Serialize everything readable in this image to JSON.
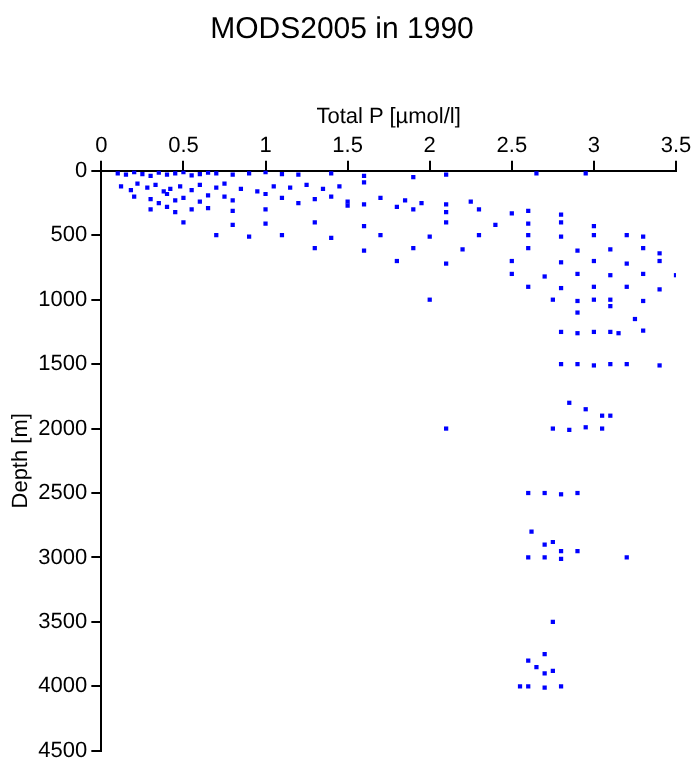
{
  "chart_data": {
    "type": "scatter",
    "title": "MODS2005 in 1990",
    "xlabel": "Total P [µmol/l]",
    "ylabel": "Depth [m]",
    "xlim": [
      0,
      3.5
    ],
    "xticks": [
      0,
      0.5,
      1,
      1.5,
      2,
      2.5,
      3,
      3.5
    ],
    "ylim": [
      4500,
      0
    ],
    "yticks": [
      0,
      500,
      1000,
      1500,
      2000,
      2500,
      3000,
      3500,
      4000,
      4500
    ],
    "grid": false,
    "legend": false,
    "marker": "square",
    "series": [
      {
        "color": "#0000ff",
        "x": [
          0.1,
          0.15,
          0.2,
          0.25,
          0.3,
          0.35,
          0.4,
          0.45,
          0.5,
          0.55,
          0.6,
          0.65,
          0.7,
          0.8,
          0.9,
          1.0,
          1.1,
          1.2,
          1.4,
          1.6,
          1.9,
          2.1,
          2.65,
          2.95,
          0.12,
          0.18,
          0.22,
          0.28,
          0.33,
          0.38,
          0.42,
          0.48,
          0.55,
          0.6,
          0.7,
          0.75,
          0.85,
          0.95,
          1.05,
          1.15,
          1.25,
          1.35,
          1.45,
          1.6,
          0.2,
          0.3,
          0.35,
          0.4,
          0.45,
          0.5,
          0.6,
          0.65,
          0.75,
          0.8,
          1.0,
          1.1,
          1.2,
          1.3,
          1.4,
          1.5,
          1.6,
          1.7,
          1.85,
          1.95,
          2.1,
          2.25,
          0.3,
          0.4,
          0.45,
          0.55,
          0.65,
          0.8,
          1.0,
          1.5,
          1.8,
          1.9,
          2.1,
          2.3,
          2.5,
          2.6,
          2.8,
          0.5,
          0.8,
          1.0,
          1.3,
          1.6,
          2.1,
          2.4,
          2.6,
          2.8,
          3.0,
          0.7,
          0.9,
          1.1,
          1.4,
          1.7,
          2.0,
          2.3,
          2.6,
          2.8,
          3.0,
          3.2,
          3.3,
          1.3,
          1.6,
          1.9,
          2.2,
          2.6,
          2.9,
          3.1,
          3.3,
          3.4,
          1.8,
          2.1,
          2.5,
          2.8,
          3.0,
          3.2,
          3.4,
          2.5,
          2.7,
          2.9,
          3.1,
          3.3,
          3.5,
          2.6,
          2.8,
          3.0,
          3.2,
          3.4,
          2.0,
          2.75,
          2.9,
          3.0,
          3.1,
          3.3,
          2.9,
          3.1,
          3.25,
          2.8,
          2.9,
          3.0,
          3.1,
          3.15,
          3.3,
          2.8,
          2.9,
          3.0,
          3.1,
          3.2,
          3.4,
          2.1,
          2.75,
          2.85,
          2.95,
          3.05,
          3.1,
          2.85,
          2.95,
          3.05,
          2.6,
          2.7,
          2.8,
          2.9,
          2.6,
          2.7,
          2.8,
          2.9,
          3.2,
          2.62,
          2.7,
          2.75,
          2.8,
          2.75,
          2.7,
          2.6,
          2.65,
          2.7,
          2.75,
          2.55,
          2.6,
          2.7,
          2.8
        ],
        "values": [
          20,
          30,
          10,
          25,
          40,
          15,
          30,
          20,
          10,
          35,
          25,
          15,
          20,
          30,
          20,
          10,
          25,
          30,
          20,
          40,
          50,
          30,
          20,
          20,
          120,
          150,
          100,
          130,
          110,
          160,
          140,
          120,
          150,
          110,
          130,
          100,
          140,
          160,
          120,
          130,
          110,
          140,
          120,
          90,
          200,
          220,
          250,
          180,
          230,
          210,
          240,
          190,
          200,
          230,
          180,
          210,
          250,
          220,
          200,
          240,
          260,
          210,
          230,
          250,
          260,
          240,
          300,
          280,
          320,
          300,
          290,
          310,
          300,
          270,
          280,
          300,
          320,
          300,
          330,
          310,
          340,
          400,
          420,
          410,
          400,
          430,
          400,
          420,
          410,
          400,
          430,
          500,
          510,
          500,
          520,
          500,
          510,
          500,
          500,
          510,
          500,
          500,
          510,
          600,
          620,
          600,
          610,
          600,
          620,
          610,
          600,
          640,
          700,
          720,
          700,
          710,
          700,
          720,
          700,
          800,
          820,
          800,
          810,
          800,
          810,
          900,
          910,
          900,
          900,
          920,
          1000,
          1000,
          1010,
          1000,
          1000,
          1010,
          1100,
          1050,
          1150,
          1250,
          1260,
          1250,
          1250,
          1260,
          1240,
          1500,
          1500,
          1510,
          1500,
          1500,
          1510,
          2000,
          2000,
          2010,
          1990,
          2000,
          1900,
          1800,
          1850,
          1900,
          2500,
          2500,
          2510,
          2500,
          3000,
          3000,
          3010,
          2950,
          3000,
          2800,
          2900,
          2880,
          2950,
          3500,
          3750,
          3800,
          3850,
          3900,
          3880,
          4000,
          4000,
          4010,
          4000
        ]
      }
    ]
  }
}
